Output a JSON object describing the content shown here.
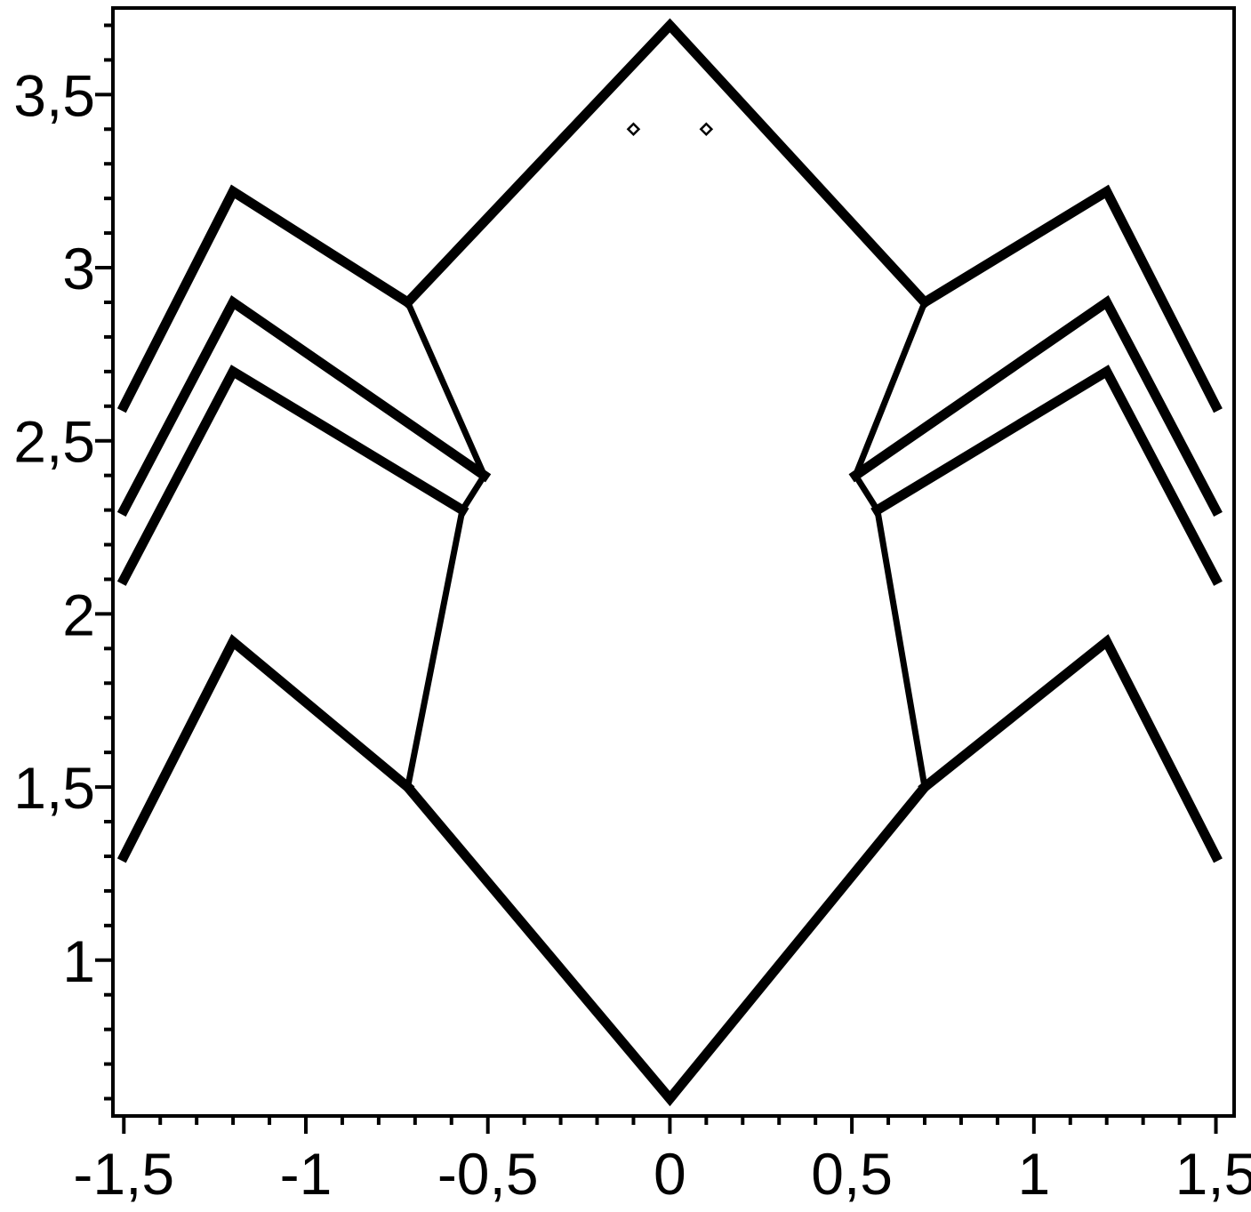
{
  "chart_data": {
    "type": "line",
    "title": "",
    "xlabel": "",
    "ylabel": "",
    "xlim": [
      -1.53,
      1.55
    ],
    "ylim": [
      0.55,
      3.75
    ],
    "grid": false,
    "legend": "none",
    "line_color": "#000000",
    "x_ticks": [
      {
        "value": -1.5,
        "label": "-1,5"
      },
      {
        "value": -1,
        "label": "-1"
      },
      {
        "value": -0.5,
        "label": "-0,5"
      },
      {
        "value": 0,
        "label": "0"
      },
      {
        "value": 0.5,
        "label": "0,5"
      },
      {
        "value": 1,
        "label": "1"
      },
      {
        "value": 1.5,
        "label": "1,5"
      }
    ],
    "y_ticks": [
      {
        "value": 1,
        "label": "1"
      },
      {
        "value": 1.5,
        "label": "1,5"
      },
      {
        "value": 2,
        "label": "2"
      },
      {
        "value": 2.5,
        "label": "2,5"
      },
      {
        "value": 3,
        "label": "3"
      },
      {
        "value": 3.5,
        "label": "3,5"
      }
    ],
    "series": [
      {
        "points": [
          [
            -0.72,
            2.9
          ],
          [
            0,
            3.7
          ],
          [
            0.7,
            2.9
          ]
        ],
        "width": 11
      },
      {
        "points": [
          [
            -0.72,
            1.5
          ],
          [
            0,
            0.6
          ],
          [
            0.7,
            1.5
          ]
        ],
        "width": 11
      },
      {
        "points": [
          [
            -0.72,
            2.9
          ],
          [
            -0.51,
            2.4
          ],
          [
            -0.57,
            2.3
          ],
          [
            -0.72,
            1.5
          ]
        ],
        "width": 7
      },
      {
        "points": [
          [
            0.7,
            2.9
          ],
          [
            0.51,
            2.4
          ],
          [
            0.57,
            2.3
          ],
          [
            0.7,
            1.5
          ]
        ],
        "width": 7
      },
      {
        "points": [
          [
            -1.5,
            2.6
          ],
          [
            -1.2,
            3.22
          ],
          [
            -0.72,
            2.9
          ]
        ],
        "width": 11
      },
      {
        "points": [
          [
            -1.5,
            2.3
          ],
          [
            -1.2,
            2.9
          ],
          [
            -0.51,
            2.4
          ]
        ],
        "width": 11
      },
      {
        "points": [
          [
            -1.5,
            2.1
          ],
          [
            -1.2,
            2.7
          ],
          [
            -0.57,
            2.3
          ]
        ],
        "width": 11
      },
      {
        "points": [
          [
            -1.5,
            1.3
          ],
          [
            -1.2,
            1.92
          ],
          [
            -0.72,
            1.5
          ]
        ],
        "width": 11
      },
      {
        "points": [
          [
            1.5,
            2.6
          ],
          [
            1.2,
            3.22
          ],
          [
            0.7,
            2.9
          ]
        ],
        "width": 11
      },
      {
        "points": [
          [
            1.5,
            2.3
          ],
          [
            1.2,
            2.9
          ],
          [
            0.51,
            2.4
          ]
        ],
        "width": 11
      },
      {
        "points": [
          [
            1.5,
            2.1
          ],
          [
            1.2,
            2.7
          ],
          [
            0.57,
            2.3
          ]
        ],
        "width": 11
      },
      {
        "points": [
          [
            1.5,
            1.3
          ],
          [
            1.2,
            1.92
          ],
          [
            0.7,
            1.5
          ]
        ],
        "width": 11
      }
    ],
    "markers": [
      {
        "x": -0.1,
        "y": 3.4,
        "shape": "diamond"
      },
      {
        "x": 0.1,
        "y": 3.4,
        "shape": "diamond"
      }
    ]
  }
}
